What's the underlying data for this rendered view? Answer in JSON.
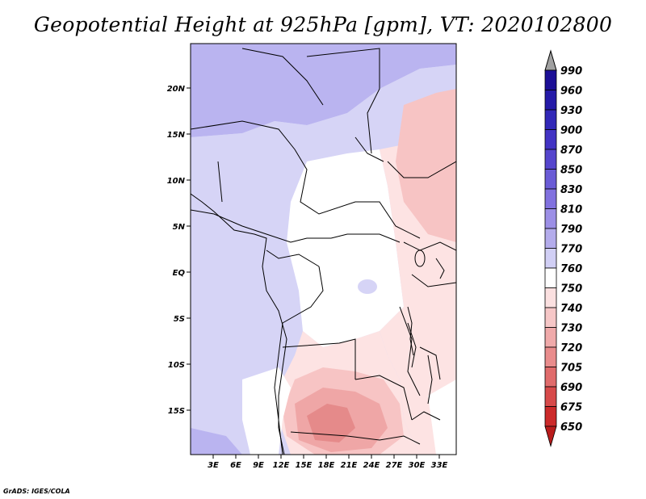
{
  "title": "Geopotential Height at 925hPa [gpm], VT: 2020102800",
  "credit": "GrADS: IGES/COLA",
  "lat_labels": [
    "20N",
    "15N",
    "10N",
    "5N",
    "EQ",
    "5S",
    "10S",
    "15S"
  ],
  "lon_labels": [
    "3E",
    "6E",
    "9E",
    "12E",
    "15E",
    "18E",
    "21E",
    "24E",
    "27E",
    "30E",
    "33E"
  ],
  "colorbar": {
    "levels": [
      "990",
      "960",
      "930",
      "900",
      "870",
      "850",
      "830",
      "810",
      "790",
      "770",
      "760",
      "750",
      "740",
      "730",
      "720",
      "705",
      "690",
      "675",
      "650"
    ],
    "colors": [
      "#1c0f96",
      "#251aa8",
      "#3228b8",
      "#4233c4",
      "#5545cd",
      "#6a5bd6",
      "#8171df",
      "#9c8fe6",
      "#b4acec",
      "#d1cff5",
      "#ffffff",
      "#fbe0e0",
      "#f6c7c7",
      "#f0aaaa",
      "#e98c8c",
      "#e06b6b",
      "#d74a4a",
      "#cc2a2a",
      "#b91c1c"
    ],
    "over_color": "#a0a0a0"
  },
  "map_colors": {
    "ocean": "#d6d4f6",
    "low_purple": "#bab4f0",
    "white": "#ffffff",
    "pink1": "#fde3e3",
    "pink2": "#f7c4c4",
    "pink3": "#efa6a6",
    "pink4": "#e58a8a"
  }
}
